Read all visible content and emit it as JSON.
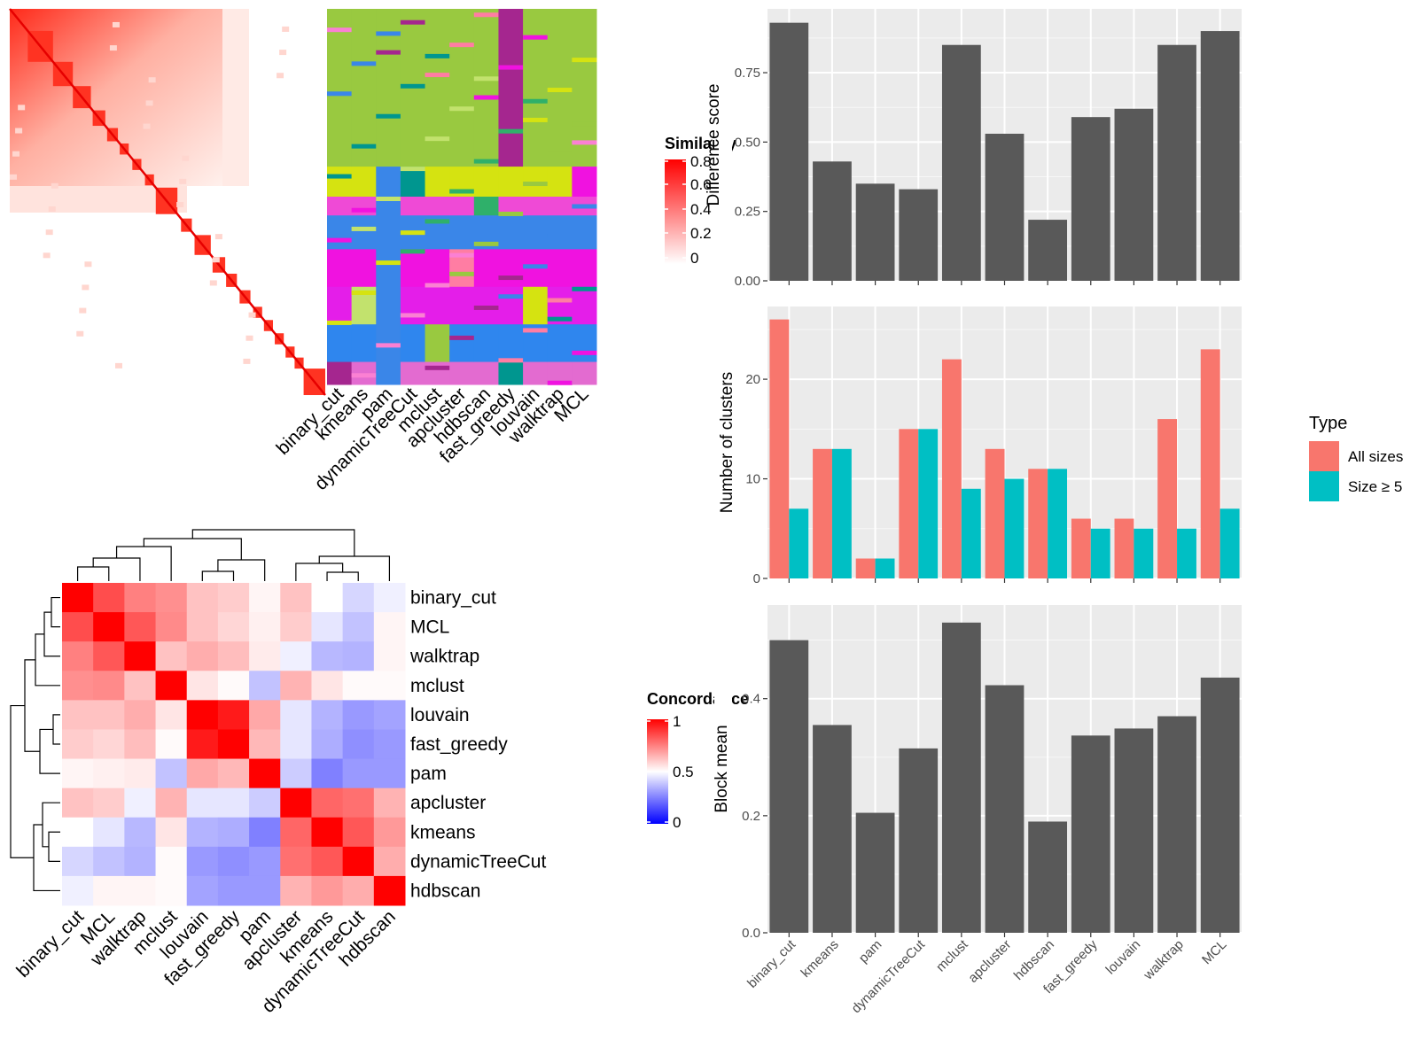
{
  "methods_heatmap_cols": [
    "binary_cut",
    "kmeans",
    "pam",
    "dynamicTreeCut",
    "mclust",
    "apcluster",
    "hdbscan",
    "fast_greedy",
    "louvain",
    "walktrap",
    "MCL"
  ],
  "chart_data": [
    {
      "type": "heatmap",
      "id": "similarity-matrix",
      "legend_title": "Similarity",
      "legend_ticks": [
        "0.8",
        "0.6",
        "0.4",
        "0.2",
        "0"
      ],
      "colors": {
        "low": "#ffffff",
        "high": "#ff0000"
      }
    },
    {
      "type": "heatmap",
      "id": "cluster-assignments",
      "columns": [
        "binary_cut",
        "kmeans",
        "pam",
        "dynamicTreeCut",
        "mclust",
        "apcluster",
        "hdbscan",
        "fast_greedy",
        "louvain",
        "walktrap",
        "MCL"
      ]
    },
    {
      "type": "heatmap",
      "id": "concordance",
      "legend_title": "Concordance",
      "legend_ticks": [
        "1",
        "0.5",
        "0"
      ],
      "colors": {
        "low": "#0000ff",
        "mid": "#ffffff",
        "high": "#ff0000"
      },
      "rows": [
        "binary_cut",
        "MCL",
        "walktrap",
        "mclust",
        "louvain",
        "fast_greedy",
        "pam",
        "apcluster",
        "kmeans",
        "dynamicTreeCut",
        "hdbscan"
      ],
      "columns": [
        "binary_cut",
        "MCL",
        "walktrap",
        "mclust",
        "louvain",
        "fast_greedy",
        "pam",
        "apcluster",
        "kmeans",
        "dynamicTreeCut",
        "hdbscan"
      ],
      "values": [
        [
          1.0,
          0.85,
          0.75,
          0.72,
          0.62,
          0.6,
          0.52,
          0.62,
          0.5,
          0.42,
          0.47
        ],
        [
          0.85,
          1.0,
          0.83,
          0.73,
          0.62,
          0.58,
          0.53,
          0.6,
          0.45,
          0.38,
          0.52
        ],
        [
          0.75,
          0.83,
          1.0,
          0.62,
          0.66,
          0.63,
          0.54,
          0.47,
          0.36,
          0.35,
          0.52
        ],
        [
          0.72,
          0.73,
          0.62,
          1.0,
          0.55,
          0.51,
          0.38,
          0.65,
          0.55,
          0.51,
          0.51
        ],
        [
          0.62,
          0.62,
          0.66,
          0.55,
          1.0,
          0.95,
          0.67,
          0.45,
          0.35,
          0.3,
          0.32
        ],
        [
          0.6,
          0.58,
          0.63,
          0.51,
          0.95,
          1.0,
          0.64,
          0.45,
          0.34,
          0.28,
          0.3
        ],
        [
          0.52,
          0.53,
          0.54,
          0.38,
          0.67,
          0.64,
          1.0,
          0.4,
          0.25,
          0.3,
          0.3
        ],
        [
          0.62,
          0.6,
          0.47,
          0.65,
          0.45,
          0.45,
          0.4,
          1.0,
          0.8,
          0.78,
          0.65
        ],
        [
          0.5,
          0.45,
          0.36,
          0.55,
          0.35,
          0.34,
          0.25,
          0.8,
          1.0,
          0.83,
          0.7
        ],
        [
          0.42,
          0.38,
          0.35,
          0.51,
          0.3,
          0.28,
          0.3,
          0.78,
          0.83,
          1.0,
          0.66
        ],
        [
          0.47,
          0.52,
          0.52,
          0.51,
          0.32,
          0.3,
          0.3,
          0.65,
          0.7,
          0.66,
          1.0
        ]
      ]
    },
    {
      "type": "bar",
      "id": "difference-score",
      "ylabel": "Difference score",
      "categories": [
        "binary_cut",
        "kmeans",
        "pam",
        "dynamicTreeCut",
        "mclust",
        "apcluster",
        "hdbscan",
        "fast_greedy",
        "louvain",
        "walktrap",
        "MCL"
      ],
      "values": [
        0.93,
        0.43,
        0.35,
        0.33,
        0.85,
        0.53,
        0.22,
        0.59,
        0.62,
        0.85,
        0.9
      ],
      "ylim": [
        0,
        0.98
      ],
      "yticks": [
        0,
        0.25,
        0.5,
        0.75
      ],
      "ytick_labels": [
        "0.00",
        "0.25",
        "0.50",
        "0.75"
      ],
      "bar_color": "#595959"
    },
    {
      "type": "bar",
      "id": "number-of-clusters",
      "ylabel": "Number of clusters",
      "categories": [
        "binary_cut",
        "kmeans",
        "pam",
        "dynamicTreeCut",
        "mclust",
        "apcluster",
        "hdbscan",
        "fast_greedy",
        "louvain",
        "walktrap",
        "MCL"
      ],
      "legend_title": "Type",
      "series": [
        {
          "name": "All sizes",
          "color": "#f8766d",
          "values": [
            26,
            13,
            2,
            15,
            22,
            13,
            11,
            6,
            6,
            16,
            23
          ]
        },
        {
          "name": "Size ≥ 5",
          "color": "#00bfc4",
          "values": [
            7,
            13,
            2,
            15,
            9,
            10,
            11,
            5,
            5,
            5,
            7
          ]
        }
      ],
      "ylim": [
        0,
        27.3
      ],
      "yticks": [
        0,
        10,
        20
      ],
      "ytick_labels": [
        "0",
        "10",
        "20"
      ]
    },
    {
      "type": "bar",
      "id": "block-mean",
      "ylabel": "Block mean",
      "categories": [
        "binary_cut",
        "kmeans",
        "pam",
        "dynamicTreeCut",
        "mclust",
        "apcluster",
        "hdbscan",
        "fast_greedy",
        "louvain",
        "walktrap",
        "MCL"
      ],
      "values": [
        0.5,
        0.355,
        0.205,
        0.315,
        0.53,
        0.423,
        0.19,
        0.337,
        0.349,
        0.37,
        0.436
      ],
      "ylim": [
        0,
        0.56
      ],
      "yticks": [
        0,
        0.2,
        0.4
      ],
      "ytick_labels": [
        "0.0",
        "0.2",
        "0.4"
      ],
      "bar_color": "#595959"
    }
  ]
}
